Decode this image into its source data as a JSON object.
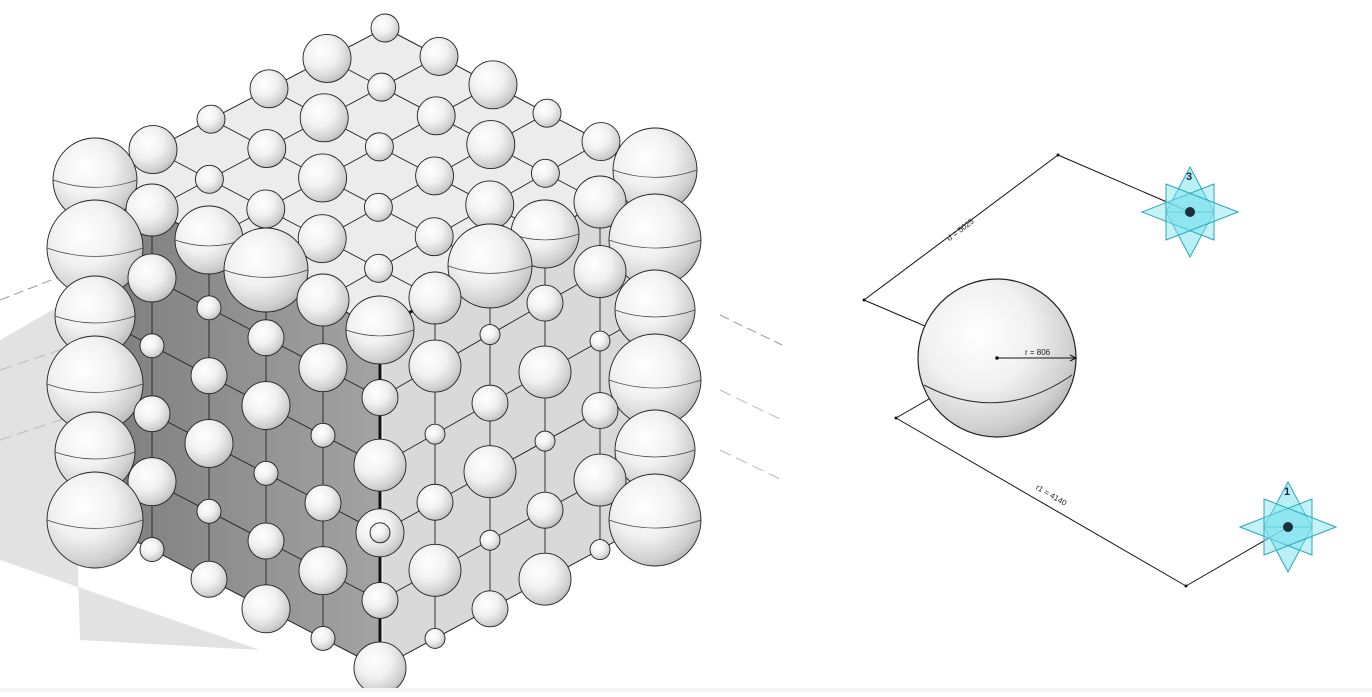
{
  "viewport": {
    "left_view": "cube-with-spheres",
    "right_view": "family-editor-sphere"
  },
  "dimensions": {
    "d_label": "d = 5025",
    "r_label": "r = 806",
    "r1_label": "r1 = 4140"
  },
  "reference_points": {
    "point_3": "3",
    "point_1": "1"
  },
  "colors": {
    "sphere_fill": "#f2f2f2",
    "face_top": "#ececec",
    "face_left": "#8e8e8e",
    "face_right": "#d6d6d6",
    "point_cyan": "#7fe3ee",
    "point_stroke": "#2aa7bd"
  }
}
